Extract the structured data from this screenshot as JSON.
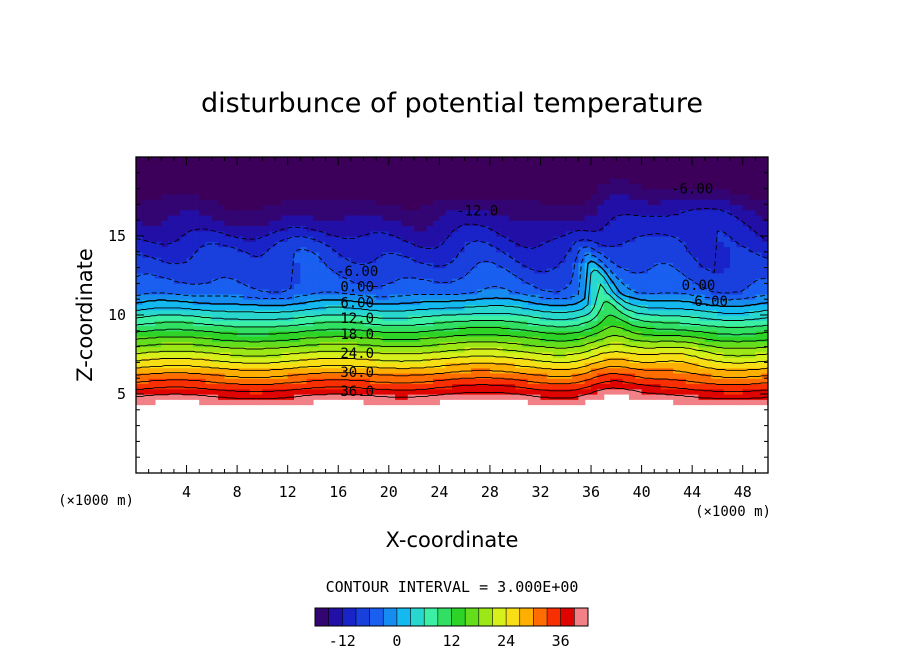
{
  "chart_data": {
    "type": "contour",
    "title": "disturbunce of potential temperature",
    "xlabel": "X-coordinate",
    "ylabel": "Z-coordinate",
    "x_unit": "(×1000 m)",
    "y_unit": "(×1000 m)",
    "xlim": [
      0,
      50
    ],
    "ylim": [
      0,
      20
    ],
    "x_ticks": [
      4,
      8,
      12,
      16,
      20,
      24,
      28,
      32,
      36,
      40,
      44,
      48
    ],
    "y_ticks": [
      5,
      10,
      15
    ],
    "contour_interval_text": "CONTOUR INTERVAL = 3.000E+00",
    "contour_levels": [
      -12,
      -9,
      -6,
      -3,
      0,
      3,
      6,
      9,
      12,
      15,
      18,
      21,
      24,
      27,
      30,
      33,
      36,
      39
    ],
    "contour_labels": [
      {
        "text": "-12.0",
        "x": 27.0,
        "z": 16.6
      },
      {
        "text": "-6.00",
        "x": 44.0,
        "z": 18.0
      },
      {
        "text": "-6.00",
        "x": 17.5,
        "z": 12.8
      },
      {
        "text": "0.00",
        "x": 17.5,
        "z": 11.8
      },
      {
        "text": "6.00",
        "x": 17.5,
        "z": 10.8
      },
      {
        "text": "12.0",
        "x": 17.5,
        "z": 9.8
      },
      {
        "text": "18.0",
        "x": 17.5,
        "z": 8.8
      },
      {
        "text": "24.0",
        "x": 17.5,
        "z": 7.6
      },
      {
        "text": "30.0",
        "x": 17.5,
        "z": 6.4
      },
      {
        "text": "36.0",
        "x": 17.5,
        "z": 5.2
      },
      {
        "text": "0.00",
        "x": 44.5,
        "z": 11.9
      },
      {
        "text": "6.00",
        "x": 45.5,
        "z": 10.9
      }
    ],
    "colorbar": {
      "min": -18,
      "max": 42,
      "tick_labels": [
        "-12",
        "0",
        "12",
        "24",
        "36"
      ],
      "tick_values": [
        -12,
        0,
        12,
        24,
        36
      ]
    }
  }
}
